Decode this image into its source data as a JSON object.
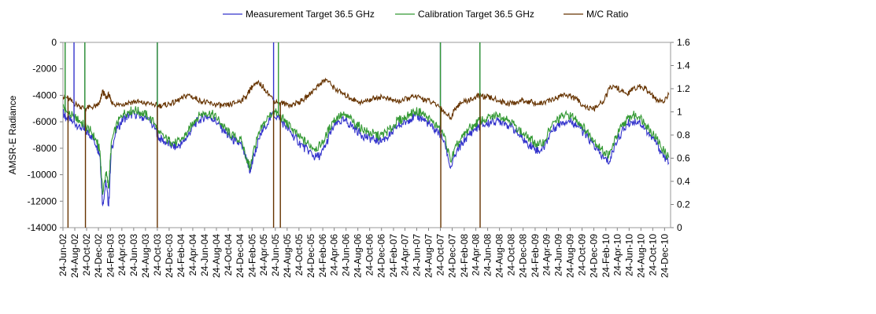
{
  "chart_data": {
    "type": "line",
    "title": "",
    "ylabel": "AMSR-E Radiance",
    "y2label": "",
    "ylim": [
      -14000,
      0
    ],
    "y2lim": [
      0,
      1.6
    ],
    "yticks": [
      0,
      -2000,
      -4000,
      -6000,
      -8000,
      -10000,
      -12000,
      -14000
    ],
    "y2ticks": [
      0,
      0.2,
      0.4,
      0.6,
      0.8,
      1,
      1.2,
      1.4,
      1.6
    ],
    "xlim": [
      "2002-06-24",
      "2011-01-24"
    ],
    "x_tick_labels": [
      "24-Jun-02",
      "24-Aug-02",
      "24-Oct-02",
      "24-Dec-02",
      "24-Feb-03",
      "24-Apr-03",
      "24-Jun-03",
      "24-Aug-03",
      "24-Oct-03",
      "24-Dec-03",
      "24-Feb-04",
      "24-Apr-04",
      "24-Jun-04",
      "24-Aug-04",
      "24-Oct-04",
      "24-Dec-04",
      "24-Feb-05",
      "24-Apr-05",
      "24-Jun-05",
      "24-Aug-05",
      "24-Oct-05",
      "24-Dec-05",
      "24-Feb-06",
      "24-Apr-06",
      "24-Jun-06",
      "24-Aug-06",
      "24-Oct-06",
      "24-Dec-06",
      "24-Feb-07",
      "24-Apr-07",
      "24-Jun-07",
      "24-Aug-07",
      "24-Oct-07",
      "24-Dec-07",
      "24-Feb-08",
      "24-Apr-08",
      "24-Jun-08",
      "24-Aug-08",
      "24-Oct-08",
      "24-Dec-08",
      "24-Feb-09",
      "24-Apr-09",
      "24-Jun-09",
      "24-Aug-09",
      "24-Oct-09",
      "24-Dec-09",
      "24-Feb-10",
      "24-Apr-10",
      "24-Jun-10",
      "24-Aug-10",
      "24-Oct-10",
      "24-Dec-10"
    ],
    "grid": false,
    "legend_position": "top",
    "colors": {
      "measurement": "#3333cc",
      "calibration": "#339933",
      "ratio": "#663300"
    },
    "series": [
      {
        "name": "Measurement Target 36.5 GHz",
        "axis": "left",
        "x": [
          "2002-06-24",
          "2002-07-15",
          "2002-08-15",
          "2002-09-15",
          "2002-10-15",
          "2002-11-15",
          "2002-12-15",
          "2003-01-01",
          "2003-01-15",
          "2003-02-01",
          "2003-02-15",
          "2003-03-01",
          "2003-04-01",
          "2003-05-01",
          "2003-06-01",
          "2003-07-01",
          "2003-08-01",
          "2003-09-01",
          "2003-10-15",
          "2003-11-01",
          "2003-12-01",
          "2004-01-01",
          "2004-02-01",
          "2004-03-01",
          "2004-04-01",
          "2004-05-01",
          "2004-06-01",
          "2004-07-01",
          "2004-08-01",
          "2004-09-01",
          "2004-10-01",
          "2004-11-01",
          "2004-12-01",
          "2005-01-01",
          "2005-02-01",
          "2005-02-15",
          "2005-03-01",
          "2005-04-01",
          "2005-05-01",
          "2005-06-15",
          "2005-07-15",
          "2005-08-15",
          "2005-09-15",
          "2005-10-15",
          "2005-11-15",
          "2005-12-15",
          "2006-01-15",
          "2006-02-15",
          "2006-03-15",
          "2006-04-15",
          "2006-05-15",
          "2006-06-15",
          "2006-07-15",
          "2006-08-15",
          "2006-09-15",
          "2006-10-15",
          "2006-11-15",
          "2006-12-15",
          "2007-01-15",
          "2007-02-15",
          "2007-03-15",
          "2007-04-15",
          "2007-05-15",
          "2007-06-15",
          "2007-07-15",
          "2007-08-15",
          "2007-09-15",
          "2007-10-15",
          "2007-11-15",
          "2007-12-15",
          "2008-01-15",
          "2008-02-15",
          "2008-03-15",
          "2008-04-15",
          "2008-05-15",
          "2008-06-15",
          "2008-07-15",
          "2008-08-15",
          "2008-09-15",
          "2008-10-15",
          "2008-11-15",
          "2008-12-15",
          "2009-01-15",
          "2009-02-15",
          "2009-03-15",
          "2009-04-15",
          "2009-05-15",
          "2009-06-15",
          "2009-07-15",
          "2009-08-15",
          "2009-09-15",
          "2009-10-15",
          "2009-11-15",
          "2009-12-15",
          "2010-01-15",
          "2010-02-15",
          "2010-03-15",
          "2010-04-15",
          "2010-05-15",
          "2010-06-15",
          "2010-07-15",
          "2010-08-15",
          "2010-09-15",
          "2010-10-15",
          "2010-11-15",
          "2010-12-15",
          "2011-01-15"
        ],
        "values": [
          -5300,
          -5800,
          -6000,
          -6300,
          -6700,
          -7000,
          -7800,
          -8500,
          -12300,
          -10500,
          -12400,
          -8000,
          -6500,
          -5800,
          -5500,
          -5400,
          -5600,
          -5800,
          -6500,
          -7200,
          -7500,
          -7800,
          -7900,
          -7600,
          -7000,
          -6200,
          -5800,
          -5600,
          -5700,
          -6100,
          -6700,
          -7200,
          -7500,
          -7800,
          -9200,
          -9800,
          -8800,
          -7300,
          -6300,
          -5400,
          -5800,
          -6300,
          -6900,
          -7400,
          -7900,
          -8200,
          -8700,
          -8500,
          -7600,
          -6500,
          -6000,
          -5900,
          -6200,
          -6600,
          -7000,
          -7200,
          -7300,
          -7500,
          -7200,
          -6900,
          -6300,
          -6200,
          -5800,
          -5600,
          -5700,
          -6000,
          -6500,
          -6800,
          -7500,
          -9500,
          -8300,
          -7600,
          -7000,
          -6600,
          -6300,
          -6200,
          -6000,
          -5900,
          -6000,
          -6300,
          -6700,
          -7200,
          -7600,
          -7900,
          -8200,
          -7800,
          -6800,
          -6300,
          -6000,
          -5900,
          -6100,
          -6500,
          -7100,
          -7600,
          -8200,
          -8800,
          -9000,
          -7600,
          -6800,
          -6200,
          -5900,
          -6000,
          -6500,
          -7100,
          -7700,
          -8500,
          -9100
        ]
      },
      {
        "name": "Calibration Target 36.5 GHz",
        "axis": "left",
        "x": [
          "2002-06-24",
          "2002-07-15",
          "2002-08-15",
          "2002-09-15",
          "2002-10-15",
          "2002-11-15",
          "2002-12-15",
          "2003-01-01",
          "2003-01-15",
          "2003-02-01",
          "2003-02-15",
          "2003-03-01",
          "2003-04-01",
          "2003-05-01",
          "2003-06-01",
          "2003-07-01",
          "2003-08-01",
          "2003-09-01",
          "2003-10-15",
          "2003-11-01",
          "2003-12-01",
          "2004-01-01",
          "2004-02-01",
          "2004-03-01",
          "2004-04-01",
          "2004-05-01",
          "2004-06-01",
          "2004-07-01",
          "2004-08-01",
          "2004-09-01",
          "2004-10-01",
          "2004-11-01",
          "2004-12-01",
          "2005-01-01",
          "2005-02-01",
          "2005-02-15",
          "2005-03-01",
          "2005-04-01",
          "2005-05-01",
          "2005-06-15",
          "2005-07-15",
          "2005-08-15",
          "2005-09-15",
          "2005-10-15",
          "2005-11-15",
          "2005-12-15",
          "2006-01-15",
          "2006-02-15",
          "2006-03-15",
          "2006-04-15",
          "2006-05-15",
          "2006-06-15",
          "2006-07-15",
          "2006-08-15",
          "2006-09-15",
          "2006-10-15",
          "2006-11-15",
          "2006-12-15",
          "2007-01-15",
          "2007-02-15",
          "2007-03-15",
          "2007-04-15",
          "2007-05-15",
          "2007-06-15",
          "2007-07-15",
          "2007-08-15",
          "2007-09-15",
          "2007-10-15",
          "2007-11-15",
          "2007-12-15",
          "2008-01-15",
          "2008-02-15",
          "2008-03-15",
          "2008-04-15",
          "2008-05-15",
          "2008-06-15",
          "2008-07-15",
          "2008-08-15",
          "2008-09-15",
          "2008-10-15",
          "2008-11-15",
          "2008-12-15",
          "2009-01-15",
          "2009-02-15",
          "2009-03-15",
          "2009-04-15",
          "2009-05-15",
          "2009-06-15",
          "2009-07-15",
          "2009-08-15",
          "2009-09-15",
          "2009-10-15",
          "2009-11-15",
          "2009-12-15",
          "2010-01-15",
          "2010-02-15",
          "2010-03-15",
          "2010-04-15",
          "2010-05-15",
          "2010-06-15",
          "2010-07-15",
          "2010-08-15",
          "2010-09-15",
          "2010-10-15",
          "2010-11-15",
          "2010-12-15",
          "2011-01-15"
        ],
        "values": [
          -4800,
          -5300,
          -5600,
          -5900,
          -6300,
          -6700,
          -7500,
          -8200,
          -11500,
          -9800,
          -11000,
          -7500,
          -6100,
          -5400,
          -5200,
          -5100,
          -5300,
          -5500,
          -6200,
          -6900,
          -7200,
          -7500,
          -7600,
          -7300,
          -6700,
          -5900,
          -5500,
          -5300,
          -5400,
          -5800,
          -6400,
          -6900,
          -7200,
          -7500,
          -9000,
          -9500,
          -8300,
          -6900,
          -6000,
          -5200,
          -5500,
          -6000,
          -6500,
          -7000,
          -7400,
          -7700,
          -8000,
          -7800,
          -7000,
          -6000,
          -5600,
          -5500,
          -5800,
          -6200,
          -6500,
          -6800,
          -6900,
          -7100,
          -6800,
          -6500,
          -5900,
          -5800,
          -5400,
          -5200,
          -5300,
          -5600,
          -6100,
          -6400,
          -7100,
          -9000,
          -7800,
          -7200,
          -6600,
          -6200,
          -5900,
          -5800,
          -5600,
          -5500,
          -5600,
          -5900,
          -6300,
          -6800,
          -7200,
          -7500,
          -7800,
          -7400,
          -6400,
          -5900,
          -5600,
          -5500,
          -5700,
          -6100,
          -6700,
          -7200,
          -7800,
          -8300,
          -8500,
          -7200,
          -6400,
          -5800,
          -5500,
          -5600,
          -6100,
          -6700,
          -7300,
          -8100,
          -8700
        ]
      },
      {
        "name": "M/C Ratio",
        "axis": "right",
        "x": [
          "2002-06-24",
          "2002-07-15",
          "2002-08-15",
          "2002-09-15",
          "2002-10-15",
          "2002-11-15",
          "2002-12-15",
          "2003-01-01",
          "2003-01-15",
          "2003-02-01",
          "2003-02-15",
          "2003-03-01",
          "2003-04-01",
          "2003-05-01",
          "2003-06-01",
          "2003-07-01",
          "2003-08-01",
          "2003-09-01",
          "2003-10-15",
          "2003-11-01",
          "2003-12-01",
          "2004-01-01",
          "2004-02-01",
          "2004-03-01",
          "2004-04-01",
          "2004-05-01",
          "2004-06-01",
          "2004-07-01",
          "2004-08-01",
          "2004-09-01",
          "2004-10-01",
          "2004-11-01",
          "2004-12-01",
          "2005-01-01",
          "2005-02-01",
          "2005-02-15",
          "2005-03-01",
          "2005-04-01",
          "2005-05-01",
          "2005-06-15",
          "2005-07-15",
          "2005-08-15",
          "2005-09-15",
          "2005-10-15",
          "2005-11-15",
          "2005-12-15",
          "2006-01-15",
          "2006-02-15",
          "2006-03-15",
          "2006-04-15",
          "2006-05-15",
          "2006-06-15",
          "2006-07-15",
          "2006-08-15",
          "2006-09-15",
          "2006-10-15",
          "2006-11-15",
          "2006-12-15",
          "2007-01-15",
          "2007-02-15",
          "2007-03-15",
          "2007-04-15",
          "2007-05-15",
          "2007-06-15",
          "2007-07-15",
          "2007-08-15",
          "2007-09-15",
          "2007-10-15",
          "2007-11-15",
          "2007-12-15",
          "2008-01-15",
          "2008-02-15",
          "2008-03-15",
          "2008-04-15",
          "2008-05-15",
          "2008-06-15",
          "2008-07-15",
          "2008-08-15",
          "2008-09-15",
          "2008-10-15",
          "2008-11-15",
          "2008-12-15",
          "2009-01-15",
          "2009-02-15",
          "2009-03-15",
          "2009-04-15",
          "2009-05-15",
          "2009-06-15",
          "2009-07-15",
          "2009-08-15",
          "2009-09-15",
          "2009-10-15",
          "2009-11-15",
          "2009-12-15",
          "2010-01-15",
          "2010-02-15",
          "2010-03-15",
          "2010-04-15",
          "2010-05-15",
          "2010-06-15",
          "2010-07-15",
          "2010-08-15",
          "2010-09-15",
          "2010-10-15",
          "2010-11-15",
          "2010-12-15",
          "2011-01-15"
        ],
        "values": [
          1.13,
          1.12,
          1.08,
          1.05,
          1.03,
          1.04,
          1.05,
          1.08,
          1.18,
          1.12,
          1.15,
          1.08,
          1.06,
          1.07,
          1.08,
          1.09,
          1.08,
          1.07,
          1.06,
          1.05,
          1.06,
          1.07,
          1.09,
          1.12,
          1.15,
          1.12,
          1.1,
          1.08,
          1.07,
          1.06,
          1.05,
          1.06,
          1.08,
          1.1,
          1.15,
          1.2,
          1.22,
          1.25,
          1.2,
          1.1,
          1.08,
          1.07,
          1.06,
          1.08,
          1.1,
          1.15,
          1.2,
          1.25,
          1.28,
          1.22,
          1.18,
          1.15,
          1.12,
          1.1,
          1.08,
          1.1,
          1.12,
          1.13,
          1.12,
          1.1,
          1.09,
          1.1,
          1.12,
          1.13,
          1.12,
          1.1,
          1.08,
          1.05,
          1.0,
          0.95,
          1.05,
          1.08,
          1.1,
          1.12,
          1.14,
          1.13,
          1.12,
          1.1,
          1.08,
          1.07,
          1.08,
          1.1,
          1.09,
          1.08,
          1.07,
          1.08,
          1.1,
          1.12,
          1.15,
          1.14,
          1.12,
          1.08,
          1.04,
          1.02,
          1.05,
          1.1,
          1.2,
          1.22,
          1.18,
          1.15,
          1.2,
          1.22,
          1.2,
          1.15,
          1.1,
          1.08,
          1.15
        ]
      }
    ],
    "spikes": [
      {
        "series": "Measurement Target 36.5 GHz",
        "x": [
          "2002-07-05",
          "2002-08-20",
          "2002-10-15",
          "2003-10-24",
          "2005-06-15",
          "2007-10-24",
          "2008-05-15"
        ],
        "to": 0
      },
      {
        "series": "Calibration Target 36.5 GHz",
        "x": [
          "2002-07-05",
          "2002-10-15",
          "2003-10-24",
          "2005-07-10",
          "2007-10-24",
          "2008-05-15"
        ],
        "to": 0
      },
      {
        "series": "M/C Ratio",
        "x": [
          "2002-07-20",
          "2002-10-18",
          "2003-10-24",
          "2005-06-15",
          "2005-07-20",
          "2007-10-26",
          "2008-05-16"
        ],
        "to": 0
      }
    ]
  }
}
